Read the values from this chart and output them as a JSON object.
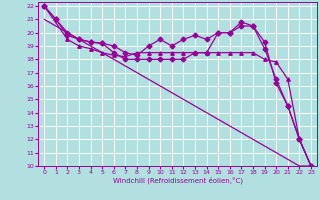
{
  "background_color": "#b2e0e0",
  "grid_color": "#ffffff",
  "line_color": "#990099",
  "xlabel": "Windchill (Refroidissement éolien,°C)",
  "xlim": [
    -0.5,
    23.5
  ],
  "ylim": [
    10,
    22.3
  ],
  "xticks": [
    0,
    1,
    2,
    3,
    4,
    5,
    6,
    7,
    8,
    9,
    10,
    11,
    12,
    13,
    14,
    15,
    16,
    17,
    18,
    19,
    20,
    21,
    22,
    23
  ],
  "yticks": [
    10,
    11,
    12,
    13,
    14,
    15,
    16,
    17,
    18,
    19,
    20,
    21,
    22
  ],
  "lines": [
    {
      "x": [
        0,
        1,
        2,
        3,
        4,
        5,
        6,
        7,
        8,
        9,
        10,
        11,
        12,
        13,
        14,
        15,
        16,
        17,
        18,
        19,
        20,
        21,
        22,
        23
      ],
      "y": [
        22,
        21,
        20,
        19.5,
        19.3,
        19.2,
        18.5,
        18,
        18,
        18,
        18,
        18,
        18,
        18.5,
        18.5,
        20,
        20,
        20.5,
        20.5,
        19.3,
        16.2,
        14.5,
        12,
        10
      ],
      "marker": "D",
      "markersize": 2.5,
      "lw": 0.9
    },
    {
      "x": [
        0,
        1,
        2,
        3,
        4,
        5,
        6,
        7,
        8,
        9,
        10,
        11,
        12,
        13,
        14,
        15,
        16,
        17,
        18,
        19,
        20,
        21,
        22,
        23
      ],
      "y": [
        22,
        21,
        19.8,
        19.5,
        19.3,
        19.2,
        19,
        18.5,
        18.3,
        19,
        19.5,
        19,
        19.5,
        19.8,
        19.5,
        20,
        20,
        20.8,
        20.5,
        18.8,
        16.5,
        14.5,
        12,
        10
      ],
      "marker": "D",
      "markersize": 2.5,
      "lw": 0.9
    },
    {
      "x": [
        0,
        2,
        3,
        4,
        5,
        6,
        7,
        8,
        9,
        10,
        11,
        12,
        13,
        14,
        15,
        16,
        17,
        18,
        19,
        20,
        21,
        22,
        23
      ],
      "y": [
        22,
        19.5,
        19,
        18.8,
        18.5,
        18.3,
        18.2,
        18.5,
        18.5,
        18.5,
        18.5,
        18.5,
        18.5,
        18.5,
        18.5,
        18.5,
        18.5,
        18.5,
        18.0,
        17.8,
        16.5,
        12,
        10
      ],
      "marker": "^",
      "markersize": 2.5,
      "lw": 0.9
    },
    {
      "x": [
        0,
        1,
        2,
        3,
        4,
        5,
        6,
        7,
        8,
        9,
        10,
        11,
        12,
        13,
        14,
        15,
        16,
        17,
        18,
        19,
        20,
        21,
        22,
        23
      ],
      "y": [
        21,
        20.5,
        20,
        19.5,
        19,
        18.5,
        18,
        17.5,
        17,
        16.5,
        16,
        15.5,
        15,
        14.5,
        14,
        13.5,
        13,
        12.5,
        12,
        11.5,
        11,
        10.5,
        10,
        10
      ],
      "marker": "None",
      "markersize": 0,
      "lw": 0.9
    }
  ]
}
